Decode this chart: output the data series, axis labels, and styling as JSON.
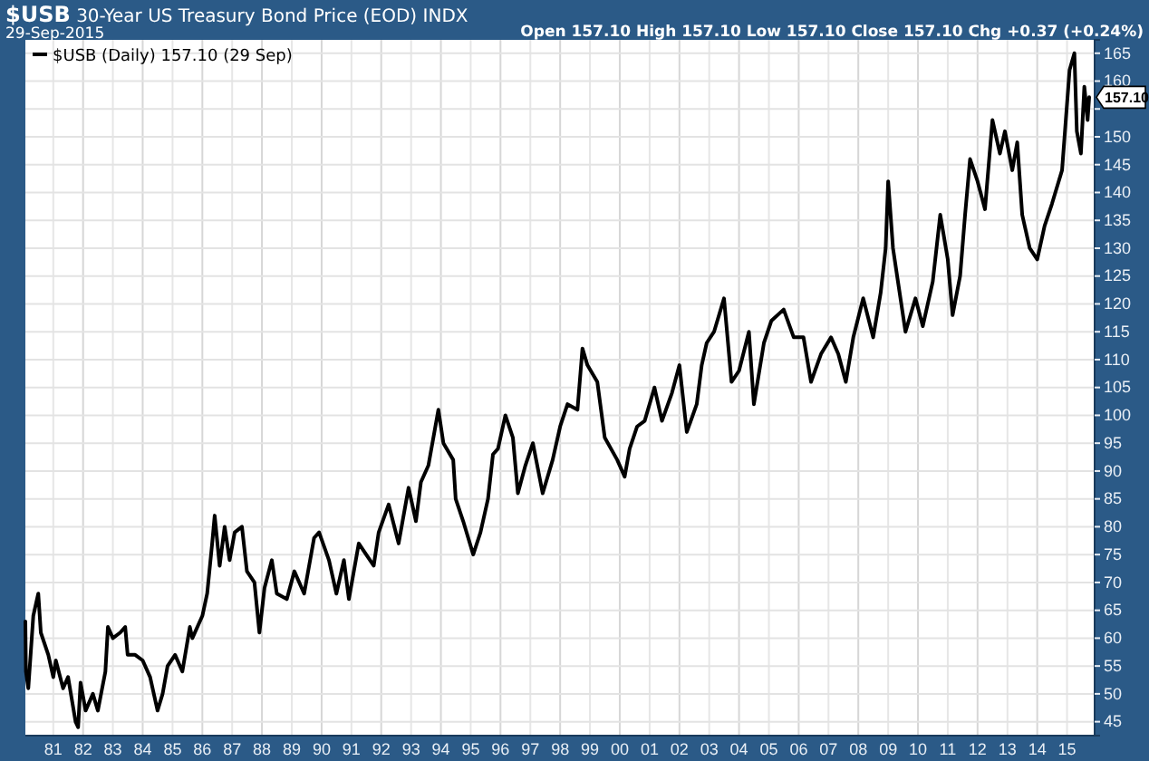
{
  "chart_data": {
    "type": "line",
    "title": "$USB 30-Year US Treasury Bond Price (EOD) INDX",
    "subtitle": "29-Sep-2015",
    "annotations": [
      "Open 157.10  High 157.10  Low 157.10  Close 157.10  Chg +0.37 (+0.24%)",
      {
        "text": "157.10",
        "x": "2015-09-29",
        "y": 157.1
      }
    ],
    "series": [
      {
        "name": "$USB (Daily) 157.10 (29 Sep)",
        "color": "#000000",
        "x": [
          "1980-01-25",
          "1980-02",
          "1980-03",
          "1980-05",
          "1980-07",
          "1980-08",
          "1980-11",
          "1981-01",
          "1981-02",
          "1981-05",
          "1981-07",
          "1981-10",
          "1981-11",
          "1981-12",
          "1982-02",
          "1982-05",
          "1982-07",
          "1982-10",
          "1982-11",
          "1983-01",
          "1983-04",
          "1983-06",
          "1983-07",
          "1983-10",
          "1984-01",
          "1984-04",
          "1984-07",
          "1984-09",
          "1984-11",
          "1985-02",
          "1985-05",
          "1985-08",
          "1985-09",
          "1986-01",
          "1986-03",
          "1986-05",
          "1986-06",
          "1986-08",
          "1986-10",
          "1986-12",
          "1987-02",
          "1987-05",
          "1987-07",
          "1987-10",
          "1987-12",
          "1988-02",
          "1988-05",
          "1988-07",
          "1988-11",
          "1989-02",
          "1989-06",
          "1989-10",
          "1989-12",
          "1990-04",
          "1990-07",
          "1990-10",
          "1990-12",
          "1991-04",
          "1991-07",
          "1991-10",
          "1991-12",
          "1992-04",
          "1992-08",
          "1992-12",
          "1993-03",
          "1993-05",
          "1993-08",
          "1993-12",
          "1994-02",
          "1994-06",
          "1994-07",
          "1994-10",
          "1995-02",
          "1995-05",
          "1995-08",
          "1995-10",
          "1995-12",
          "1996-03",
          "1996-06",
          "1996-08",
          "1996-11",
          "1997-02",
          "1997-06",
          "1997-10",
          "1998-01",
          "1998-04",
          "1998-08",
          "1998-10",
          "1998-12",
          "1999-04",
          "1999-07",
          "1999-12",
          "2000-03",
          "2000-05",
          "2000-08",
          "2000-11",
          "2001-03",
          "2001-06",
          "2001-10",
          "2002-01",
          "2002-04",
          "2002-08",
          "2002-10",
          "2002-12",
          "2003-03",
          "2003-07",
          "2003-10",
          "2004-01",
          "2004-05",
          "2004-07",
          "2004-11",
          "2005-02",
          "2005-07",
          "2005-11",
          "2006-03",
          "2006-06",
          "2006-10",
          "2007-02",
          "2007-05",
          "2007-08",
          "2007-11",
          "2008-03",
          "2008-07",
          "2008-10",
          "2008-12",
          "2009-01",
          "2009-03",
          "2009-05",
          "2009-08",
          "2009-12",
          "2010-03",
          "2010-07",
          "2010-10",
          "2011-01",
          "2011-03",
          "2011-06",
          "2011-08",
          "2011-10",
          "2012-01",
          "2012-04",
          "2012-07",
          "2012-10",
          "2012-12",
          "2013-03",
          "2013-05",
          "2013-07",
          "2013-10",
          "2014-01",
          "2014-04",
          "2014-07",
          "2014-11",
          "2015-02",
          "2015-04",
          "2015-05",
          "2015-06-20",
          "2015-08",
          "2015-09-10",
          "2015-09-29"
        ],
        "values": [
          63,
          54,
          51,
          64,
          68,
          61,
          57,
          53,
          56,
          51,
          53,
          45,
          44,
          52,
          47,
          50,
          47,
          54,
          62,
          60,
          61,
          62,
          57,
          57,
          56,
          53,
          47,
          50,
          55,
          57,
          54,
          62,
          60,
          64,
          68,
          77,
          82,
          73,
          80,
          74,
          79,
          80,
          72,
          70,
          61,
          69,
          74,
          68,
          67,
          72,
          68,
          78,
          79,
          74,
          68,
          74,
          67,
          77,
          75,
          73,
          79,
          84,
          77,
          87,
          81,
          88,
          91,
          101,
          95,
          92,
          85,
          81,
          75,
          79,
          85,
          93,
          94,
          100,
          96,
          86,
          91,
          95,
          86,
          92,
          98,
          102,
          101,
          112,
          109,
          106,
          96,
          92,
          89,
          94,
          98,
          99,
          105,
          99,
          104,
          109,
          97,
          102,
          109,
          113,
          115,
          121,
          106,
          108,
          115,
          102,
          113,
          117,
          119,
          114,
          114,
          106,
          111,
          114,
          111,
          106,
          114,
          121,
          114,
          122,
          130,
          142,
          130,
          124,
          115,
          121,
          116,
          124,
          136,
          128,
          118,
          125,
          136,
          146,
          142,
          137,
          153,
          147,
          151,
          144,
          149,
          136,
          130,
          128,
          134,
          138,
          144,
          162,
          165,
          151,
          147,
          159,
          153,
          157.1
        ]
      }
    ],
    "xlim": [
      "1980-01-25",
      "2015-12-05"
    ],
    "xticks": [
      {
        "value": "1981-01-01",
        "label": "81"
      },
      {
        "value": "1982-01-01",
        "label": "82"
      },
      {
        "value": "1983-01-01",
        "label": "83"
      },
      {
        "value": "1984-01-01",
        "label": "84"
      },
      {
        "value": "1985-01-01",
        "label": "85"
      },
      {
        "value": "1986-01-01",
        "label": "86"
      },
      {
        "value": "1987-01-01",
        "label": "87"
      },
      {
        "value": "1988-01-01",
        "label": "88"
      },
      {
        "value": "1989-01-01",
        "label": "89"
      },
      {
        "value": "1990-01-01",
        "label": "90"
      },
      {
        "value": "1991-01-01",
        "label": "91"
      },
      {
        "value": "1992-01-01",
        "label": "92"
      },
      {
        "value": "1993-01-01",
        "label": "93"
      },
      {
        "value": "1994-01-01",
        "label": "94"
      },
      {
        "value": "1995-01-01",
        "label": "95"
      },
      {
        "value": "1996-01-01",
        "label": "96"
      },
      {
        "value": "1997-01-01",
        "label": "97"
      },
      {
        "value": "1998-01-01",
        "label": "98"
      },
      {
        "value": "1999-01-01",
        "label": "99"
      },
      {
        "value": "2000-01-01",
        "label": "00"
      },
      {
        "value": "2001-01-01",
        "label": "01"
      },
      {
        "value": "2002-01-01",
        "label": "02"
      },
      {
        "value": "2003-01-01",
        "label": "03"
      },
      {
        "value": "2004-01-01",
        "label": "04"
      },
      {
        "value": "2005-01-01",
        "label": "05"
      },
      {
        "value": "2006-01-01",
        "label": "06"
      },
      {
        "value": "2007-01-01",
        "label": "07"
      },
      {
        "value": "2008-01-01",
        "label": "08"
      },
      {
        "value": "2009-01-01",
        "label": "09"
      },
      {
        "value": "2010-01-01",
        "label": "10"
      },
      {
        "value": "2011-01-01",
        "label": "11"
      },
      {
        "value": "2012-01-01",
        "label": "12"
      },
      {
        "value": "2013-01-01",
        "label": "13"
      },
      {
        "value": "2014-01-01",
        "label": "14"
      },
      {
        "value": "2015-01-01",
        "label": "15"
      }
    ],
    "ylim": [
      42.5,
      167.4
    ],
    "yticks": [
      45,
      50,
      55,
      60,
      65,
      70,
      75,
      80,
      85,
      90,
      95,
      100,
      105,
      110,
      115,
      120,
      125,
      130,
      135,
      140,
      145,
      150,
      {
        "value": 155,
        "label": null
      },
      160,
      165
    ],
    "grid": true,
    "legend": "top left",
    "marker": "none",
    "line_style": "solid"
  }
}
